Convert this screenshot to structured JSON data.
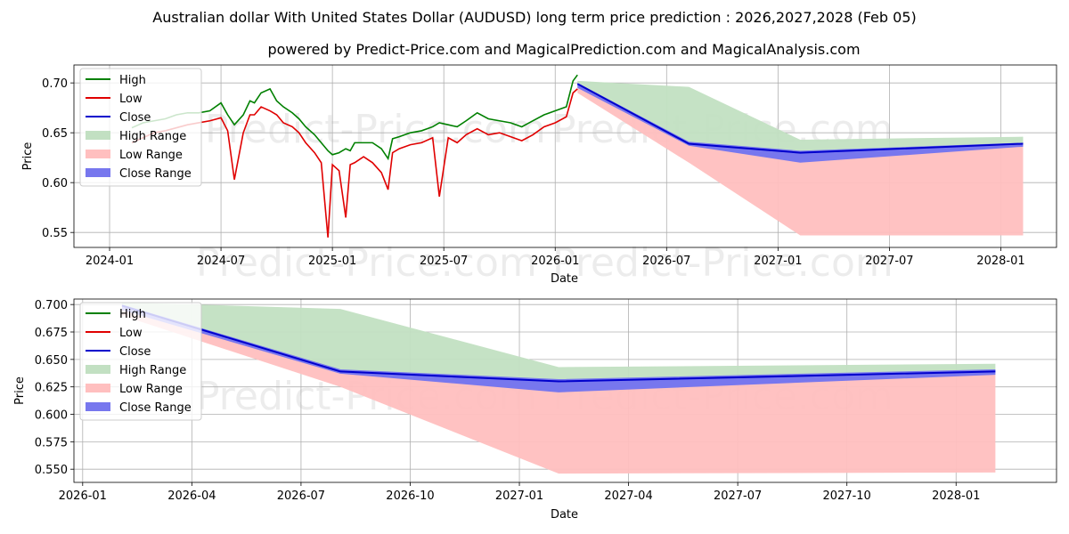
{
  "title_line1": "Australian dollar With United States Dollar (AUDUSD) long term price prediction : 2026,2027,2028 (Feb 05)",
  "title_line2": "powered by Predict-Price.com and MagicalPrediction.com and MagicalAnalysis.com",
  "watermark": "Predict-Price.com",
  "colors": {
    "high": "#008000",
    "low": "#e00000",
    "close": "#0000cc",
    "high_range": "#c2e0c2",
    "low_range": "#ffbfbf",
    "close_range": "#7777ee"
  },
  "chart_data": [
    {
      "type": "line",
      "xlabel": "Date",
      "ylabel": "Price",
      "xlim": [
        2023.84,
        2028.25
      ],
      "ylim": [
        0.535,
        0.718
      ],
      "x_ticks": [
        {
          "value": 2024.0,
          "label": "2024-01"
        },
        {
          "value": 2024.5,
          "label": "2024-07"
        },
        {
          "value": 2025.0,
          "label": "2025-01"
        },
        {
          "value": 2025.5,
          "label": "2025-07"
        },
        {
          "value": 2026.0,
          "label": "2026-01"
        },
        {
          "value": 2026.5,
          "label": "2026-07"
        },
        {
          "value": 2027.0,
          "label": "2027-01"
        },
        {
          "value": 2027.5,
          "label": "2027-07"
        },
        {
          "value": 2028.0,
          "label": "2028-01"
        }
      ],
      "y_ticks": [
        {
          "value": 0.55,
          "label": "0.55"
        },
        {
          "value": 0.6,
          "label": "0.60"
        },
        {
          "value": 0.65,
          "label": "0.65"
        },
        {
          "value": 0.7,
          "label": "0.70"
        }
      ],
      "legend": [
        "High",
        "Low",
        "Close",
        "High Range",
        "Low Range",
        "Close Range"
      ],
      "legend_position": "upper-left",
      "history": {
        "x": [
          2024.1,
          2024.15,
          2024.2,
          2024.25,
          2024.3,
          2024.35,
          2024.4,
          2024.45,
          2024.5,
          2024.53,
          2024.56,
          2024.6,
          2024.63,
          2024.65,
          2024.68,
          2024.72,
          2024.75,
          2024.78,
          2024.82,
          2024.85,
          2024.88,
          2024.92,
          2024.95,
          2024.98,
          2025.0,
          2025.03,
          2025.06,
          2025.08,
          2025.1,
          2025.14,
          2025.18,
          2025.22,
          2025.25,
          2025.27,
          2025.3,
          2025.35,
          2025.4,
          2025.45,
          2025.48,
          2025.52,
          2025.56,
          2025.6,
          2025.65,
          2025.7,
          2025.75,
          2025.8,
          2025.85,
          2025.9,
          2025.95,
          2026.0,
          2026.05,
          2026.08,
          2026.1
        ],
        "high": [
          0.655,
          0.66,
          0.662,
          0.664,
          0.668,
          0.67,
          0.67,
          0.672,
          0.68,
          0.668,
          0.658,
          0.668,
          0.682,
          0.68,
          0.69,
          0.694,
          0.682,
          0.676,
          0.67,
          0.664,
          0.656,
          0.648,
          0.64,
          0.632,
          0.628,
          0.63,
          0.634,
          0.632,
          0.64,
          0.64,
          0.64,
          0.634,
          0.624,
          0.644,
          0.646,
          0.65,
          0.652,
          0.656,
          0.66,
          0.658,
          0.656,
          0.662,
          0.67,
          0.664,
          0.662,
          0.66,
          0.656,
          0.662,
          0.668,
          0.672,
          0.676,
          0.702,
          0.708
        ],
        "low": [
          0.64,
          0.645,
          0.65,
          0.652,
          0.655,
          0.658,
          0.66,
          0.662,
          0.665,
          0.652,
          0.603,
          0.65,
          0.668,
          0.668,
          0.676,
          0.672,
          0.668,
          0.66,
          0.656,
          0.65,
          0.64,
          0.63,
          0.62,
          0.545,
          0.618,
          0.612,
          0.565,
          0.618,
          0.62,
          0.626,
          0.62,
          0.61,
          0.593,
          0.63,
          0.634,
          0.638,
          0.64,
          0.645,
          0.586,
          0.645,
          0.64,
          0.648,
          0.654,
          0.648,
          0.65,
          0.646,
          0.642,
          0.648,
          0.656,
          0.66,
          0.666,
          0.69,
          0.694
        ],
        "close": [
          0.65,
          0.653,
          0.656,
          0.658,
          0.662,
          0.664,
          0.665,
          0.667,
          0.672,
          0.66,
          0.645,
          0.66,
          0.676,
          0.674,
          0.684,
          0.686,
          0.675,
          0.668,
          0.664,
          0.657,
          0.648,
          0.64,
          0.63,
          0.625,
          0.623,
          0.622,
          0.626,
          0.625,
          0.632,
          0.634,
          0.632,
          0.626,
          0.61,
          0.638,
          0.64,
          0.644,
          0.646,
          0.65,
          0.654,
          0.652,
          0.648,
          0.656,
          0.662,
          0.656,
          0.656,
          0.653,
          0.65,
          0.655,
          0.662,
          0.666,
          0.671,
          0.696,
          0.7
        ]
      },
      "forecast": {
        "x": [
          2026.1,
          2026.6,
          2027.1,
          2028.1
        ],
        "high_range": {
          "upper": [
            0.702,
            0.696,
            0.643,
            0.646
          ],
          "lower": [
            0.698,
            0.639,
            0.63,
            0.639
          ]
        },
        "low_range": {
          "upper": [
            0.696,
            0.639,
            0.63,
            0.639
          ],
          "lower": [
            0.69,
            0.62,
            0.547,
            0.547
          ]
        },
        "close_range": {
          "upper": [
            0.7,
            0.641,
            0.632,
            0.64
          ],
          "lower": [
            0.695,
            0.637,
            0.62,
            0.636
          ]
        },
        "close": [
          0.699,
          0.639,
          0.63,
          0.639
        ]
      }
    },
    {
      "type": "line",
      "xlabel": "Date",
      "ylabel": "Price",
      "xlim": [
        2025.98,
        2028.23
      ],
      "ylim": [
        0.538,
        0.705
      ],
      "x_ticks": [
        {
          "value": 2026.0,
          "label": "2026-01"
        },
        {
          "value": 2026.25,
          "label": "2026-04"
        },
        {
          "value": 2026.5,
          "label": "2026-07"
        },
        {
          "value": 2026.75,
          "label": "2026-10"
        },
        {
          "value": 2027.0,
          "label": "2027-01"
        },
        {
          "value": 2027.25,
          "label": "2027-04"
        },
        {
          "value": 2027.5,
          "label": "2027-07"
        },
        {
          "value": 2027.75,
          "label": "2027-10"
        },
        {
          "value": 2028.0,
          "label": "2028-01"
        }
      ],
      "y_ticks": [
        {
          "value": 0.55,
          "label": "0.550"
        },
        {
          "value": 0.575,
          "label": "0.575"
        },
        {
          "value": 0.6,
          "label": "0.600"
        },
        {
          "value": 0.625,
          "label": "0.625"
        },
        {
          "value": 0.65,
          "label": "0.650"
        },
        {
          "value": 0.675,
          "label": "0.675"
        },
        {
          "value": 0.7,
          "label": "0.700"
        }
      ],
      "legend": [
        "High",
        "Low",
        "Close",
        "High Range",
        "Low Range",
        "Close Range"
      ],
      "legend_position": "upper-left",
      "forecast": {
        "x": [
          2026.09,
          2026.59,
          2027.09,
          2028.09
        ],
        "high_range": {
          "upper": [
            0.702,
            0.696,
            0.643,
            0.646
          ],
          "lower": [
            0.699,
            0.64,
            0.63,
            0.64
          ]
        },
        "low_range": {
          "upper": [
            0.697,
            0.639,
            0.63,
            0.639
          ],
          "lower": [
            0.69,
            0.625,
            0.546,
            0.547
          ]
        },
        "close_range": {
          "upper": [
            0.7,
            0.641,
            0.632,
            0.641
          ],
          "lower": [
            0.695,
            0.637,
            0.62,
            0.636
          ]
        },
        "close": [
          0.699,
          0.639,
          0.63,
          0.639
        ]
      }
    }
  ]
}
